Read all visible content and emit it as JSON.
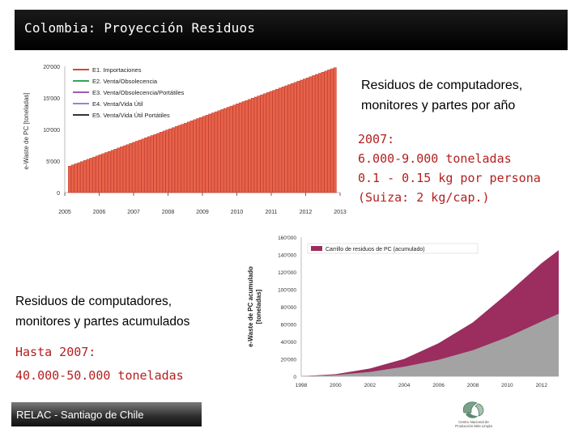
{
  "header": {
    "title": "Colombia: Proyección Residuos"
  },
  "text_annual": {
    "line1": "Residuos de computadores,",
    "line2": "monitores y partes por año"
  },
  "stats_annual": {
    "year": "2007:",
    "tons": "6.000-9.000 toneladas",
    "per_capita": "0.1 - 0.15 kg por persona",
    "swiss": "(Suiza: 2 kg/cap.)"
  },
  "text_cumulative": {
    "line1": "Residuos de computadores,",
    "line2": "monitores y partes acumulados"
  },
  "stats_cumulative": {
    "until": "Hasta 2007:",
    "tons": "40.000-50.000 toneladas"
  },
  "footer": {
    "text": "RELAC -  Santiago de Chile"
  },
  "logo": {
    "line1": "Centro Nacional de",
    "line2": "Producción Más Limpia"
  },
  "colors": {
    "bar_fill": "#e8624a",
    "bar_stroke": "#b32b1a",
    "area_top": "#9b2d5f",
    "area_bottom": "#a3a3a3",
    "red_text": "#b31f1f"
  },
  "chart_data": [
    {
      "type": "bar",
      "ylabel": "e-Waste de PC [toneladas]",
      "x_ticks": [
        "2005",
        "2006",
        "2007",
        "2008",
        "2009",
        "2010",
        "2011",
        "2012",
        "2013"
      ],
      "y_ticks": [
        "0",
        "5'000",
        "10'000",
        "15'000",
        "20'000"
      ],
      "ylim": [
        0,
        20000
      ],
      "xlim": [
        2005,
        2013
      ],
      "legend": [
        "E1. Importaciones",
        "E2. Venta/Obsolecencia",
        "E3. Venta/Obsolecencia/Portátiles",
        "E4. Venta/Vida Útil",
        "E5. Venta/Vida Útil Portátiles"
      ],
      "legend_colors": [
        "#d24a2e",
        "#3aa05a",
        "#9a5fb0",
        "#8a8ad0",
        "#333333"
      ],
      "legend_position": "top-left",
      "grid": false,
      "start": {
        "x": 2005.1,
        "y": 4200
      },
      "end": {
        "x": 2012.9,
        "y": 19800
      }
    },
    {
      "type": "area",
      "ylabel": "e-Waste de PC acumulado [toneladas]",
      "legend": [
        "Carrillo de residuos de PC (acumulado)"
      ],
      "legend_position": "top-left",
      "x_ticks": [
        "1998",
        "2000",
        "2002",
        "2004",
        "2006",
        "2008",
        "2010",
        "2012"
      ],
      "y_ticks": [
        "0",
        "20'000",
        "40'000",
        "60'000",
        "80'000",
        "100'000",
        "120'000",
        "140'000",
        "160'000"
      ],
      "ylim": [
        0,
        160000
      ],
      "xlim": [
        1998,
        2013
      ],
      "grid": false,
      "series": [
        {
          "x": [
            1998,
            2000,
            2002,
            2004,
            2006,
            2008,
            2010,
            2012,
            2013
          ],
          "values": [
            0,
            1500,
            5000,
            11000,
            19000,
            30000,
            45000,
            63000,
            72000
          ]
        },
        {
          "x": [
            1998,
            2000,
            2002,
            2004,
            2006,
            2008,
            2010,
            2012,
            2013
          ],
          "values": [
            0,
            2500,
            9000,
            20000,
            38000,
            62000,
            95000,
            130000,
            145000
          ]
        }
      ]
    }
  ]
}
